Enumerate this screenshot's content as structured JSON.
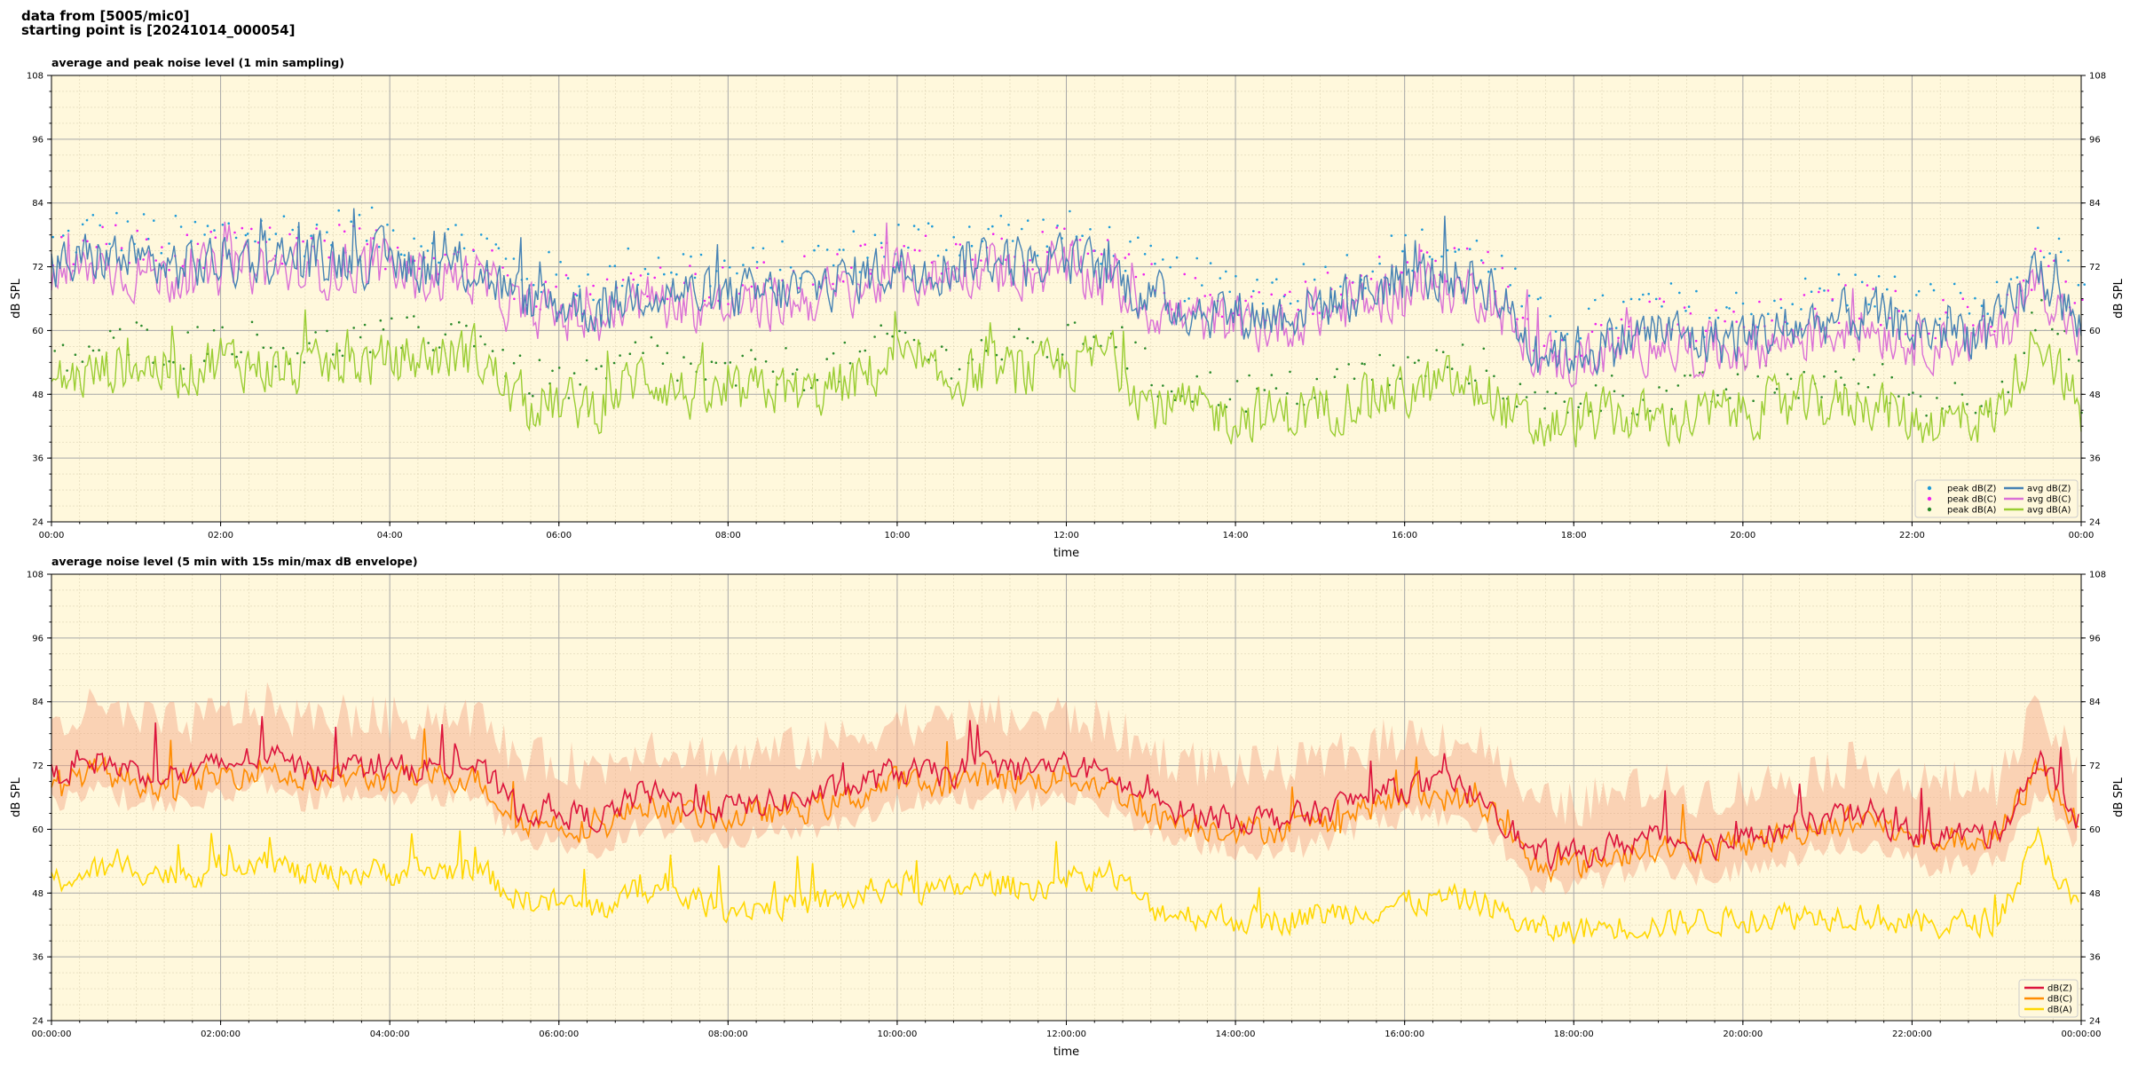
{
  "header": {
    "source_line": "data from [5005/mic0]",
    "start_line": "starting point is [20241014_000054]"
  },
  "chart_data": [
    {
      "type": "line",
      "title": "average and peak noise level (1 min sampling)",
      "xlabel": "time",
      "ylabel": "dB SPL",
      "ylim": [
        24,
        108
      ],
      "xlim_hours": [
        0,
        24
      ],
      "yticks": [
        24,
        36,
        48,
        60,
        72,
        84,
        96,
        108
      ],
      "xticks": [
        "00:00",
        "02:00",
        "04:00",
        "06:00",
        "08:00",
        "10:00",
        "12:00",
        "14:00",
        "16:00",
        "18:00",
        "20:00",
        "22:00",
        "00:00"
      ],
      "grid": true,
      "background": "#fff8dc",
      "legend_position": "lower-right",
      "legend": [
        {
          "label": "peak dB(Z)",
          "kind": "dot",
          "color": "#1f9bd7"
        },
        {
          "label": "peak dB(C)",
          "kind": "dot",
          "color": "#ee22ee"
        },
        {
          "label": "peak dB(A)",
          "kind": "dot",
          "color": "#2a8a2a"
        },
        {
          "label": "avg dB(Z)",
          "kind": "line",
          "color": "#4682b4"
        },
        {
          "label": "avg dB(C)",
          "kind": "line",
          "color": "#da70d6"
        },
        {
          "label": "avg dB(A)",
          "kind": "line",
          "color": "#9acd32"
        }
      ],
      "sample_hours": [
        0,
        0.5,
        1,
        1.5,
        2,
        2.5,
        3,
        3.5,
        4,
        4.5,
        5,
        5.5,
        6,
        6.5,
        7,
        7.5,
        8,
        8.5,
        9,
        9.5,
        10,
        10.5,
        11,
        11.5,
        12,
        12.5,
        13,
        13.5,
        14,
        14.5,
        15,
        15.5,
        16,
        16.5,
        17,
        17.5,
        18,
        18.5,
        19,
        19.5,
        20,
        20.5,
        21,
        21.5,
        22,
        22.5,
        23,
        23.5,
        24
      ],
      "series": [
        {
          "name": "avg dB(Z)",
          "color": "#4682b4",
          "values": [
            71,
            74,
            73,
            72,
            73,
            74,
            73,
            74,
            73,
            72,
            72,
            66,
            65,
            64,
            68,
            67,
            66,
            67,
            68,
            70,
            72,
            72,
            74,
            73,
            73,
            71,
            66,
            64,
            63,
            63,
            65,
            67,
            70,
            70,
            69,
            57,
            56,
            58,
            60,
            58,
            59,
            60,
            62,
            63,
            60,
            60,
            60,
            72,
            60
          ]
        },
        {
          "name": "avg dB(C)",
          "color": "#da70d6",
          "values": [
            69,
            72,
            71,
            70,
            71,
            72,
            71,
            72,
            71,
            70,
            70,
            64,
            63,
            62,
            66,
            65,
            64,
            65,
            66,
            68,
            70,
            70,
            72,
            71,
            71,
            69,
            64,
            62,
            61,
            61,
            63,
            65,
            68,
            68,
            67,
            55,
            54,
            56,
            58,
            56,
            57,
            58,
            60,
            61,
            58,
            58,
            58,
            70,
            58
          ]
        },
        {
          "name": "avg dB(A)",
          "color": "#9acd32",
          "values": [
            50,
            52,
            54,
            52,
            55,
            53,
            52,
            54,
            54,
            55,
            56,
            47,
            46,
            46,
            52,
            48,
            47,
            49,
            48,
            50,
            55,
            50,
            52,
            52,
            53,
            56,
            46,
            45,
            44,
            44,
            45,
            48,
            48,
            50,
            48,
            41,
            43,
            44,
            43,
            44,
            45,
            46,
            46,
            47,
            43,
            43,
            44,
            60,
            44
          ]
        }
      ],
      "peak_series": [
        {
          "name": "peak dB(Z)",
          "color": "#1f9bd7",
          "offset": 9
        },
        {
          "name": "peak dB(C)",
          "color": "#ee22ee",
          "offset": 8
        },
        {
          "name": "peak dB(A)",
          "color": "#2a8a2a",
          "offset": 8
        }
      ]
    },
    {
      "type": "line",
      "title": "average noise level (5 min with 15s min/max dB envelope)",
      "xlabel": "time",
      "ylabel": "dB SPL",
      "ylim": [
        24,
        108
      ],
      "xlim_hours": [
        0,
        24
      ],
      "yticks": [
        24,
        36,
        48,
        60,
        72,
        84,
        96,
        108
      ],
      "xticks": [
        "00:00:00",
        "02:00:00",
        "04:00:00",
        "06:00:00",
        "08:00:00",
        "10:00:00",
        "12:00:00",
        "14:00:00",
        "16:00:00",
        "18:00:00",
        "20:00:00",
        "22:00:00",
        "00:00:00"
      ],
      "grid": true,
      "background": "#fff8dc",
      "legend_position": "lower-right",
      "legend": [
        {
          "label": "dB(Z)",
          "kind": "line",
          "color": "#dc143c"
        },
        {
          "label": "dB(C)",
          "kind": "line",
          "color": "#ff8c00"
        },
        {
          "label": "dB(A)",
          "kind": "line",
          "color": "#ffd700"
        }
      ],
      "envelope": {
        "color": "#f4a582",
        "min_offset": -8,
        "max_offset": 14
      },
      "sample_hours": [
        0,
        0.5,
        1,
        1.5,
        2,
        2.5,
        3,
        3.5,
        4,
        4.5,
        5,
        5.5,
        6,
        6.5,
        7,
        7.5,
        8,
        8.5,
        9,
        9.5,
        10,
        10.5,
        11,
        11.5,
        12,
        12.5,
        13,
        13.5,
        14,
        14.5,
        15,
        15.5,
        16,
        16.5,
        17,
        17.5,
        18,
        18.5,
        19,
        19.5,
        20,
        20.5,
        21,
        21.5,
        22,
        22.5,
        23,
        23.5,
        24
      ],
      "series": [
        {
          "name": "dB(Z)",
          "color": "#dc143c",
          "values": [
            70,
            73,
            71,
            70,
            72,
            74,
            71,
            72,
            71,
            72,
            72,
            64,
            63,
            62,
            67,
            65,
            64,
            65,
            66,
            68,
            71,
            70,
            72,
            71,
            72,
            70,
            65,
            63,
            62,
            62,
            63,
            66,
            68,
            68,
            66,
            55,
            55,
            57,
            59,
            57,
            58,
            60,
            62,
            63,
            59,
            59,
            59,
            73,
            61
          ]
        },
        {
          "name": "dB(C)",
          "color": "#ff8c00",
          "values": [
            68,
            71,
            69,
            68,
            70,
            72,
            69,
            70,
            69,
            70,
            70,
            62,
            61,
            60,
            65,
            63,
            62,
            63,
            64,
            66,
            69,
            68,
            70,
            69,
            70,
            68,
            63,
            61,
            60,
            60,
            61,
            64,
            66,
            66,
            64,
            53,
            53,
            55,
            57,
            56,
            57,
            59,
            61,
            62,
            58,
            58,
            58,
            72,
            60
          ]
        },
        {
          "name": "dB(A)",
          "color": "#ffd700",
          "values": [
            50,
            52,
            53,
            51,
            53,
            55,
            51,
            52,
            52,
            52,
            53,
            47,
            46,
            45,
            49,
            47,
            45,
            46,
            46,
            47,
            50,
            48,
            50,
            49,
            50,
            52,
            45,
            44,
            43,
            43,
            44,
            45,
            46,
            47,
            46,
            41,
            41,
            42,
            42,
            43,
            43,
            44,
            44,
            44,
            42,
            42,
            43,
            58,
            43
          ]
        }
      ]
    }
  ]
}
